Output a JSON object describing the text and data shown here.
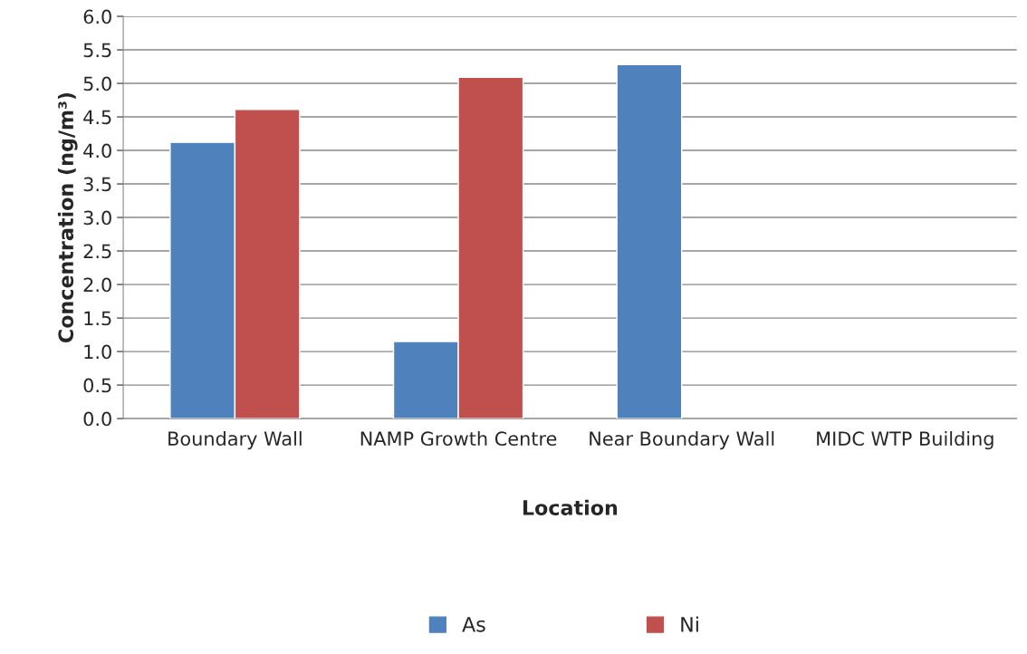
{
  "chart_data": {
    "type": "bar",
    "xlabel": "Location",
    "ylabel": "Concentration (ng/m³)",
    "categories": [
      "Boundary Wall",
      "NAMP Growth Centre",
      "Near Boundary Wall",
      "MIDC WTP Building"
    ],
    "series": [
      {
        "name": "As",
        "color": "#4f81bd",
        "values": [
          4.12,
          1.15,
          5.28,
          null
        ]
      },
      {
        "name": "Ni",
        "color": "#c0504d",
        "values": [
          4.61,
          5.09,
          null,
          null
        ]
      }
    ],
    "ylim": [
      0,
      6
    ],
    "yticks": [
      {
        "value": 0,
        "label": "0.0"
      },
      0.5,
      {
        "value": 1,
        "label": "1.0"
      },
      1.5,
      {
        "value": 2,
        "label": "2.0"
      },
      2.5,
      {
        "value": 3,
        "label": "3.0"
      },
      3.5,
      {
        "value": 4,
        "label": "4.0"
      },
      4.5,
      {
        "value": 5,
        "label": "5.0"
      },
      5.5,
      {
        "value": 6,
        "label": "6.0"
      }
    ],
    "grid": "y",
    "legend": "bottom"
  }
}
